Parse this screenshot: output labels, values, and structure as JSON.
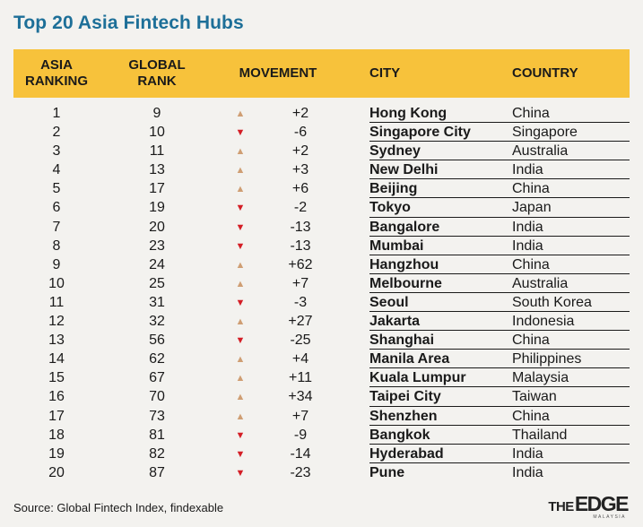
{
  "title": "Top 20 Asia Fintech Hubs",
  "colors": {
    "title": "#1d6f98",
    "header_bg": "#f7c23b",
    "up_arrow": "#cf9e73",
    "down_arrow": "#d41e26"
  },
  "headers": {
    "asia_ranking_line1": "ASIA",
    "asia_ranking_line2": "RANKING",
    "global_rank_line1": "GLOBAL",
    "global_rank_line2": "RANK",
    "movement": "MOVEMENT",
    "city": "CITY",
    "country": "COUNTRY"
  },
  "rows": [
    {
      "asia": "1",
      "global": "9",
      "dir": "up",
      "move": "+2",
      "city": "Hong Kong",
      "country": "China"
    },
    {
      "asia": "2",
      "global": "10",
      "dir": "down",
      "move": "-6",
      "city": "Singapore City",
      "country": "Singapore"
    },
    {
      "asia": "3",
      "global": "11",
      "dir": "up",
      "move": "+2",
      "city": "Sydney",
      "country": "Australia"
    },
    {
      "asia": "4",
      "global": "13",
      "dir": "up",
      "move": "+3",
      "city": "New Delhi",
      "country": "India"
    },
    {
      "asia": "5",
      "global": "17",
      "dir": "up",
      "move": "+6",
      "city": "Beijing",
      "country": "China"
    },
    {
      "asia": "6",
      "global": "19",
      "dir": "down",
      "move": "-2",
      "city": "Tokyo",
      "country": "Japan"
    },
    {
      "asia": "7",
      "global": "20",
      "dir": "down",
      "move": "-13",
      "city": "Bangalore",
      "country": "India"
    },
    {
      "asia": "8",
      "global": "23",
      "dir": "down",
      "move": "-13",
      "city": "Mumbai",
      "country": "India"
    },
    {
      "asia": "9",
      "global": "24",
      "dir": "up",
      "move": "+62",
      "city": "Hangzhou",
      "country": "China"
    },
    {
      "asia": "10",
      "global": "25",
      "dir": "up",
      "move": "+7",
      "city": "Melbourne",
      "country": "Australia"
    },
    {
      "asia": "11",
      "global": "31",
      "dir": "down",
      "move": "-3",
      "city": "Seoul",
      "country": "South Korea"
    },
    {
      "asia": "12",
      "global": "32",
      "dir": "up",
      "move": "+27",
      "city": "Jakarta",
      "country": "Indonesia"
    },
    {
      "asia": "13",
      "global": "56",
      "dir": "down",
      "move": "-25",
      "city": "Shanghai",
      "country": "China"
    },
    {
      "asia": "14",
      "global": "62",
      "dir": "up",
      "move": "+4",
      "city": "Manila Area",
      "country": "Philippines"
    },
    {
      "asia": "15",
      "global": "67",
      "dir": "up",
      "move": "+11",
      "city": "Kuala Lumpur",
      "country": "Malaysia"
    },
    {
      "asia": "16",
      "global": "70",
      "dir": "up",
      "move": "+34",
      "city": "Taipei City",
      "country": "Taiwan"
    },
    {
      "asia": "17",
      "global": "73",
      "dir": "up",
      "move": "+7",
      "city": "Shenzhen",
      "country": "China"
    },
    {
      "asia": "18",
      "global": "81",
      "dir": "down",
      "move": "-9",
      "city": "Bangkok",
      "country": "Thailand"
    },
    {
      "asia": "19",
      "global": "82",
      "dir": "down",
      "move": "-14",
      "city": "Hyderabad",
      "country": "India"
    },
    {
      "asia": "20",
      "global": "87",
      "dir": "down",
      "move": "-23",
      "city": "Pune",
      "country": "India"
    }
  ],
  "source": "Source: Global Fintech Index, findexable",
  "logo": {
    "prefix": "THE",
    "main": "EDGE",
    "sub": "MALAYSIA"
  }
}
